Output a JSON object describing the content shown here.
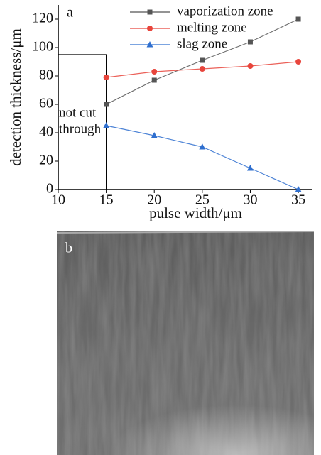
{
  "chart_data": {
    "type": "line",
    "panel_label": "a",
    "xlabel": "pulse width/μm",
    "ylabel": "detection thickness/μm",
    "x": [
      15,
      20,
      25,
      30,
      35
    ],
    "series": [
      {
        "name": "vaporization zone",
        "color": "#555555",
        "marker": "square",
        "values": [
          60,
          77,
          91,
          104,
          120
        ]
      },
      {
        "name": "melting zone",
        "color": "#e8453c",
        "marker": "circle",
        "values": [
          79,
          83,
          85,
          87,
          90
        ]
      },
      {
        "name": "slag zone",
        "color": "#2f6fcf",
        "marker": "triangle",
        "values": [
          45,
          38,
          30,
          15,
          0
        ]
      }
    ],
    "xlim": [
      10,
      36.4
    ],
    "xticks": [
      10,
      15,
      20,
      25,
      30,
      35
    ],
    "ylim": [
      0,
      130
    ],
    "yticks": [
      0,
      20,
      40,
      60,
      80,
      100,
      120
    ],
    "legend": "upper right",
    "annotation": {
      "lines": [
        "not cut",
        "through"
      ],
      "boundary_x": 15,
      "boundary_y": 95
    }
  },
  "panel_b": {
    "label": "b"
  }
}
